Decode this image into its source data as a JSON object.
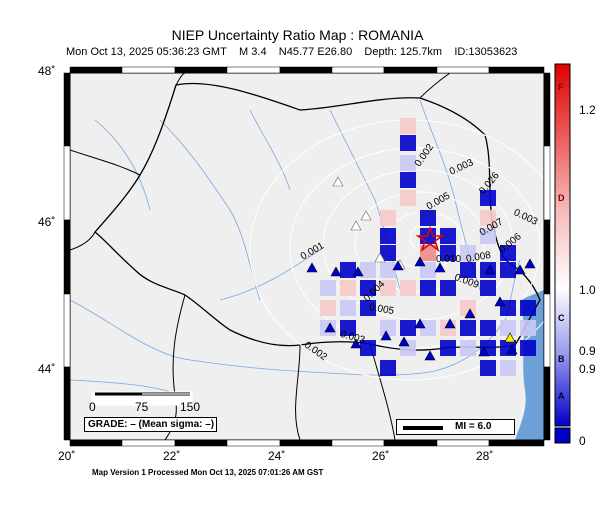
{
  "header": {
    "title": "NIEP Uncertainty Ratio Map : ROMANIA",
    "event_time": "Mon Oct 13, 2025 05:36:23 GMT",
    "magnitude": "M 3.4",
    "location": "N45.77 E26.80",
    "depth": "Depth: 125.7km",
    "event_id": "ID:13053623"
  },
  "axes": {
    "lat_labels": [
      "48˚",
      "46˚",
      "44˚"
    ],
    "lon_labels": [
      "20˚",
      "22˚",
      "24˚",
      "26˚",
      "28˚"
    ]
  },
  "colorbar": {
    "letters": [
      "F",
      "D",
      "C",
      "B",
      "A"
    ],
    "values": [
      "1.2",
      "1.0",
      "0.9",
      "0.9",
      "0"
    ],
    "colors": {
      "high": "#e00000",
      "mid": "#ffffff",
      "low": "#0000c8"
    }
  },
  "contours": [
    "0.002",
    "0.003",
    "0.026",
    "0.005",
    "0.007",
    "0.003",
    "0.006",
    "0.001",
    "0.010",
    "0.008",
    "0.004",
    "0.009",
    "0.005",
    "0.003",
    "0.002"
  ],
  "scalebar": {
    "labels": [
      "0",
      "75",
      "150"
    ]
  },
  "grade_text": "GRADE: – (Mean sigma: –)",
  "legend": {
    "mi_label": "MI = 6.0"
  },
  "footer": "Map Version 1 Processed Mon Oct 13, 2025 07:01:26 AM GST",
  "colors": {
    "sea": "#6ea0d8",
    "land": "#efefef",
    "rivers": "#7aa8e0",
    "epicenter": "#e00000"
  }
}
